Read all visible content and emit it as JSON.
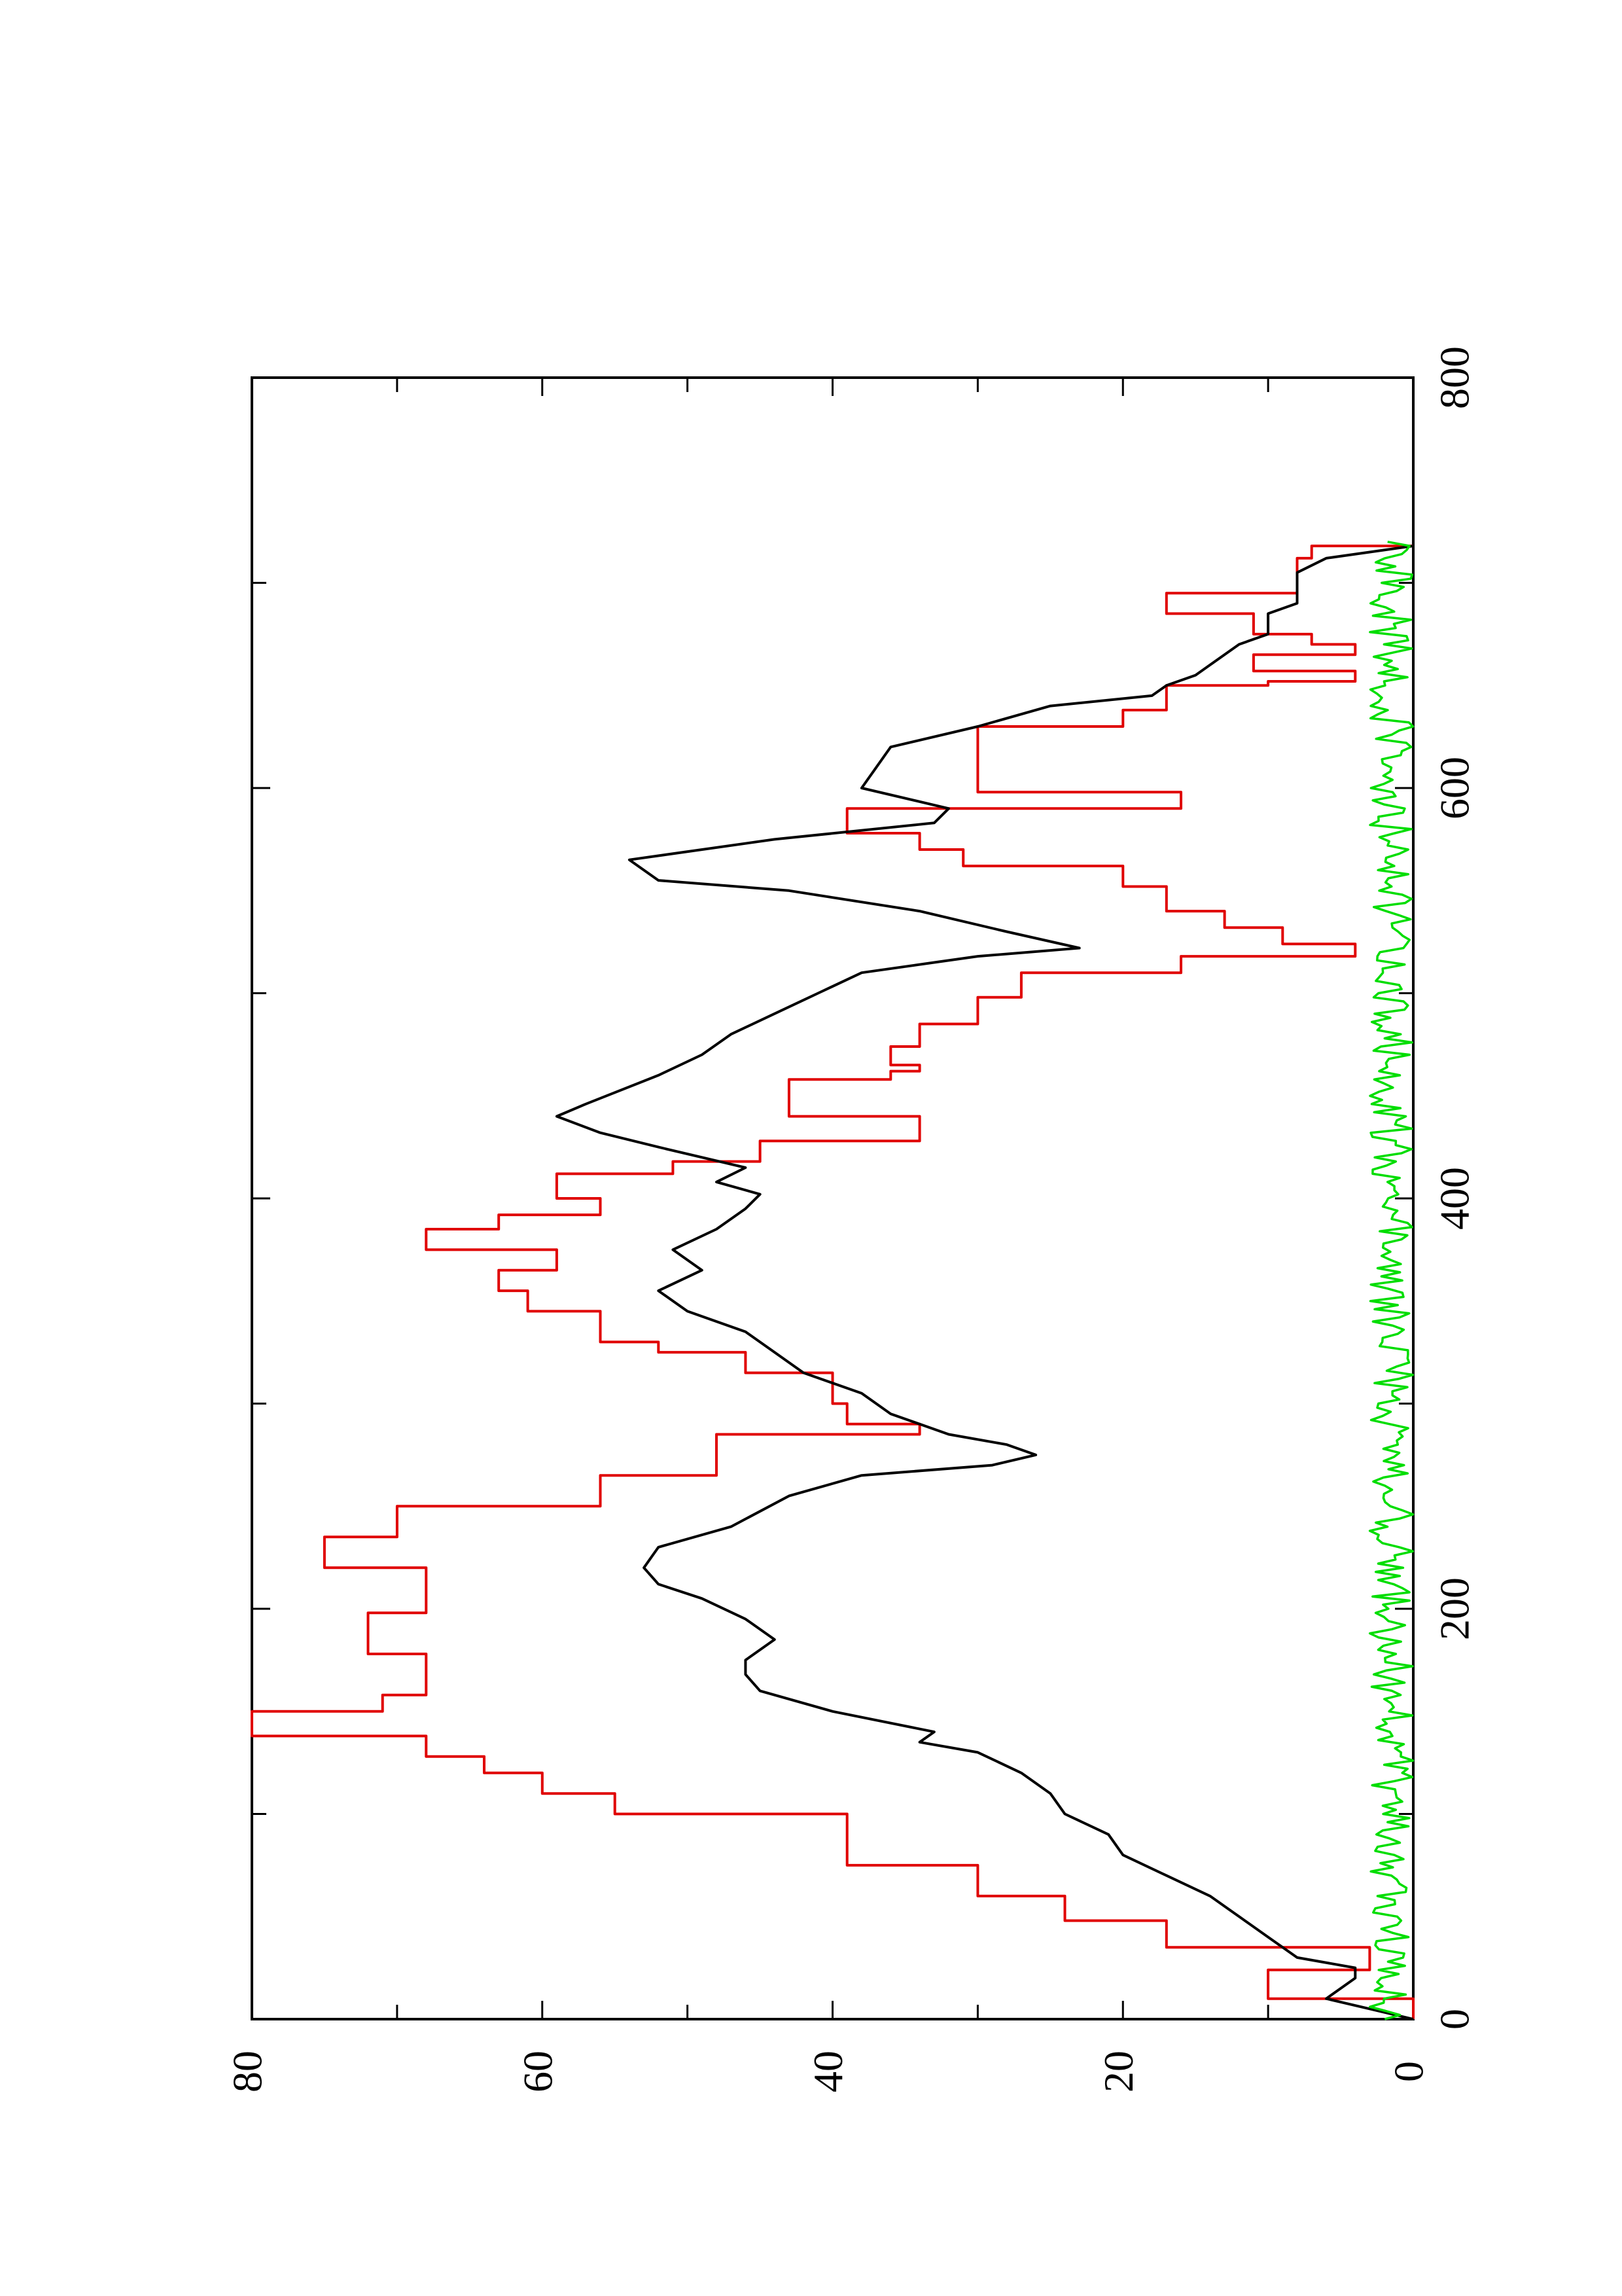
{
  "chart_data": {
    "type": "line",
    "title": "",
    "xlabel": "",
    "ylabel": "",
    "orientation": "rotated 90 degrees counter-clockwise (x axis vertical, increasing upward; y axis horizontal, increasing leftward)",
    "xlim": [
      0,
      800
    ],
    "ylim": [
      0,
      80
    ],
    "x_ticks": [
      0,
      200,
      400,
      600,
      800
    ],
    "y_ticks": [
      0,
      20,
      40,
      60,
      80
    ],
    "x_minor_ticks": [
      100,
      300,
      500,
      700
    ],
    "y_minor_ticks": [
      10,
      30,
      50,
      70
    ],
    "grid": false,
    "legend": "none",
    "series": [
      {
        "color": "#e00000",
        "step": true,
        "points": [
          [
            0,
            0
          ],
          [
            10,
            10
          ],
          [
            24,
            3
          ],
          [
            35,
            17
          ],
          [
            48,
            24
          ],
          [
            60,
            30
          ],
          [
            75,
            39
          ],
          [
            100,
            55
          ],
          [
            110,
            60
          ],
          [
            120,
            64
          ],
          [
            128,
            68
          ],
          [
            138,
            80
          ],
          [
            150,
            71
          ],
          [
            158,
            68
          ],
          [
            175,
            68
          ],
          [
            178,
            72
          ],
          [
            195,
            72
          ],
          [
            198,
            68
          ],
          [
            212,
            68
          ],
          [
            220,
            75
          ],
          [
            235,
            70
          ],
          [
            250,
            56
          ],
          [
            265,
            48
          ],
          [
            285,
            34
          ],
          [
            290,
            39
          ],
          [
            300,
            40
          ],
          [
            315,
            46
          ],
          [
            325,
            52
          ],
          [
            330,
            56
          ],
          [
            345,
            61
          ],
          [
            355,
            63
          ],
          [
            365,
            59
          ],
          [
            375,
            68
          ],
          [
            385,
            63
          ],
          [
            392,
            56
          ],
          [
            400,
            59
          ],
          [
            412,
            51
          ],
          [
            418,
            45
          ],
          [
            428,
            34
          ],
          [
            440,
            43
          ],
          [
            448,
            43
          ],
          [
            458,
            36
          ],
          [
            462,
            34
          ],
          [
            465,
            36
          ],
          [
            474,
            34
          ],
          [
            485,
            30
          ],
          [
            498,
            27
          ],
          [
            510,
            16
          ],
          [
            518,
            4
          ],
          [
            524,
            9
          ],
          [
            532,
            13
          ],
          [
            540,
            17
          ],
          [
            552,
            20
          ],
          [
            562,
            31
          ],
          [
            570,
            34
          ],
          [
            578,
            39
          ],
          [
            590,
            16
          ],
          [
            598,
            30
          ],
          [
            610,
            30
          ],
          [
            630,
            20
          ],
          [
            638,
            17
          ],
          [
            650,
            10
          ],
          [
            652,
            4
          ],
          [
            657,
            11
          ],
          [
            665,
            4
          ],
          [
            670,
            7
          ],
          [
            675,
            11
          ],
          [
            685,
            17
          ],
          [
            695,
            8
          ],
          [
            712,
            7
          ],
          [
            718,
            0
          ]
        ]
      },
      {
        "color": "#000000",
        "step": false,
        "points": [
          [
            0,
            0
          ],
          [
            5,
            3
          ],
          [
            10,
            6
          ],
          [
            20,
            4
          ],
          [
            25,
            4
          ],
          [
            30,
            8
          ],
          [
            40,
            10
          ],
          [
            50,
            12
          ],
          [
            60,
            14
          ],
          [
            70,
            17
          ],
          [
            80,
            20
          ],
          [
            90,
            21
          ],
          [
            100,
            24
          ],
          [
            110,
            25
          ],
          [
            120,
            27
          ],
          [
            130,
            30
          ],
          [
            135,
            34
          ],
          [
            140,
            33
          ],
          [
            150,
            40
          ],
          [
            160,
            45
          ],
          [
            168,
            46
          ],
          [
            175,
            46
          ],
          [
            185,
            44
          ],
          [
            195,
            46
          ],
          [
            205,
            49
          ],
          [
            212,
            52
          ],
          [
            220,
            53
          ],
          [
            230,
            52
          ],
          [
            240,
            47
          ],
          [
            255,
            43
          ],
          [
            265,
            38
          ],
          [
            270,
            29
          ],
          [
            275,
            26
          ],
          [
            280,
            28
          ],
          [
            285,
            32
          ],
          [
            295,
            36
          ],
          [
            305,
            38
          ],
          [
            315,
            42
          ],
          [
            325,
            44
          ],
          [
            335,
            46
          ],
          [
            345,
            50
          ],
          [
            355,
            52
          ],
          [
            365,
            49
          ],
          [
            375,
            51
          ],
          [
            385,
            48
          ],
          [
            395,
            46
          ],
          [
            402,
            45
          ],
          [
            408,
            48
          ],
          [
            415,
            46
          ],
          [
            425,
            52
          ],
          [
            432,
            56
          ],
          [
            440,
            59
          ],
          [
            446,
            57
          ],
          [
            460,
            52
          ],
          [
            470,
            49
          ],
          [
            480,
            47
          ],
          [
            490,
            44
          ],
          [
            500,
            41
          ],
          [
            510,
            38
          ],
          [
            515,
            33
          ],
          [
            518,
            30
          ],
          [
            522,
            23
          ],
          [
            530,
            28
          ],
          [
            540,
            34
          ],
          [
            550,
            43
          ],
          [
            555,
            52
          ],
          [
            565,
            54
          ],
          [
            575,
            44
          ],
          [
            583,
            33
          ],
          [
            590,
            32
          ],
          [
            600,
            38
          ],
          [
            610,
            37
          ],
          [
            620,
            36
          ],
          [
            630,
            30
          ],
          [
            640,
            25
          ],
          [
            645,
            18
          ],
          [
            650,
            17
          ],
          [
            655,
            15
          ],
          [
            660,
            14
          ],
          [
            670,
            12
          ],
          [
            675,
            10
          ],
          [
            685,
            10
          ],
          [
            690,
            8
          ],
          [
            695,
            8
          ],
          [
            705,
            8
          ],
          [
            712,
            6
          ],
          [
            718,
            0
          ]
        ]
      },
      {
        "color": "#00dd00",
        "step": false,
        "noise_series": true,
        "x_range": [
          0,
          720
        ],
        "y_range": [
          0,
          3
        ]
      }
    ]
  }
}
